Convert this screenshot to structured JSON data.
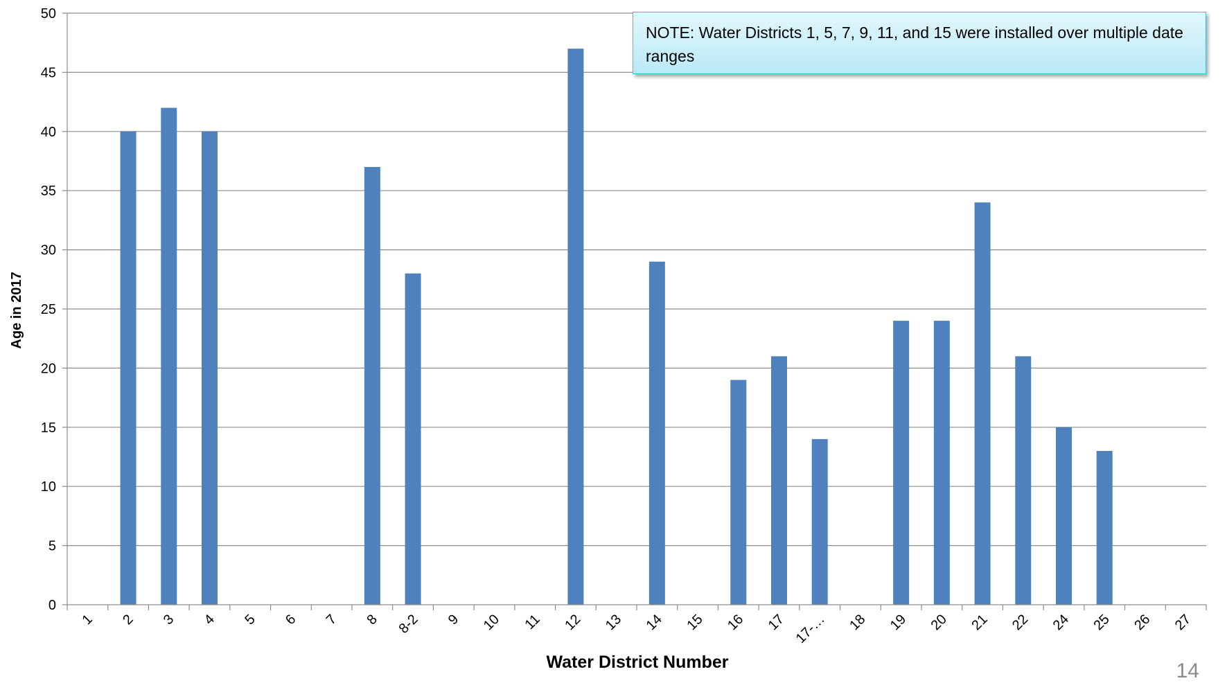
{
  "note": "NOTE:  Water Districts 1, 5, 7, 9, 11, and 15 were installed over multiple date ranges",
  "page_number": "14",
  "chart_data": {
    "type": "bar",
    "title": "",
    "xlabel": "Water District Number",
    "ylabel": "Age in 2017",
    "ylim": [
      0,
      50
    ],
    "yticks": [
      0,
      5,
      10,
      15,
      20,
      25,
      30,
      35,
      40,
      45,
      50
    ],
    "grid": true,
    "bar_color": "#4f81bd",
    "categories": [
      "1",
      "2",
      "3",
      "4",
      "5",
      "6",
      "7",
      "8",
      "8-2",
      "9",
      "10",
      "11",
      "12",
      "13",
      "14",
      "15",
      "16",
      "17",
      "17-…",
      "18",
      "19",
      "20",
      "21",
      "22",
      "24",
      "25",
      "26",
      "27"
    ],
    "values": [
      null,
      40,
      42,
      40,
      null,
      null,
      null,
      37,
      28,
      null,
      null,
      null,
      47,
      null,
      29,
      null,
      19,
      21,
      14,
      null,
      24,
      24,
      34,
      21,
      15,
      13,
      null,
      null
    ]
  }
}
